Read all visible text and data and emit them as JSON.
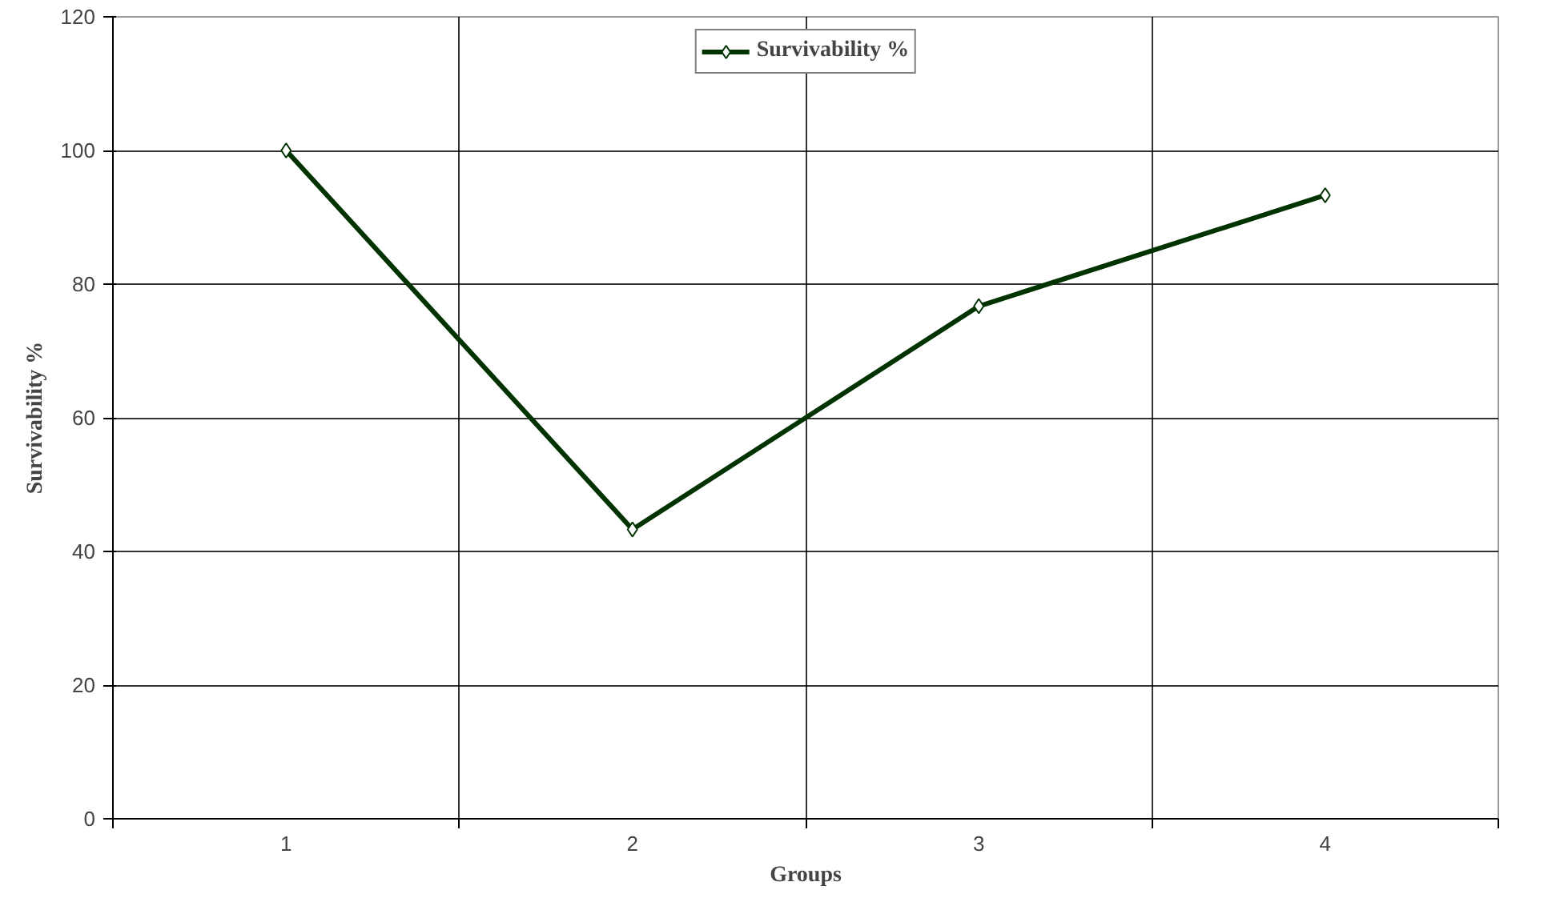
{
  "chart_data": {
    "type": "line",
    "xlabel": "Groups",
    "ylabel": "Survivability %",
    "categories": [
      "1",
      "2",
      "3",
      "4"
    ],
    "series": [
      {
        "name": "Survivability %",
        "color": "#003300",
        "values": [
          100,
          43.3,
          76.7,
          93.3
        ]
      }
    ],
    "ylim": [
      0,
      120
    ],
    "yticks": [
      0,
      20,
      40,
      60,
      80,
      100,
      120
    ],
    "grid": true,
    "legend": "top",
    "marker": "diamond",
    "line_style": "solid"
  }
}
